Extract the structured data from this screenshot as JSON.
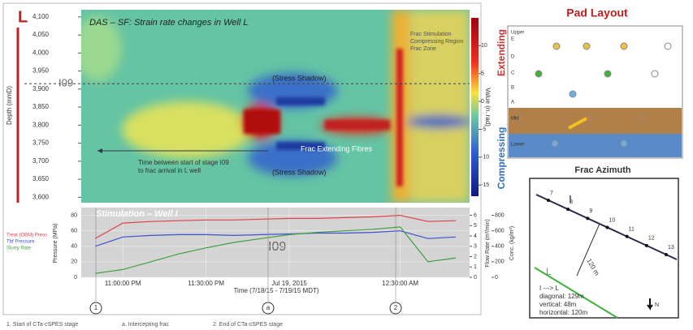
{
  "heatmap": {
    "title": "DAS – SF: Strain rate changes in Well L",
    "well": "L",
    "y_label": "Depth (mmD)",
    "ylim": [
      3585,
      4120
    ],
    "yticks": [
      {
        "value": 3600,
        "label": "3,600"
      },
      {
        "value": 3650,
        "label": "3,650"
      },
      {
        "value": 3700,
        "label": "3,700"
      },
      {
        "value": 3750,
        "label": "3,750"
      },
      {
        "value": 3800,
        "label": "3,800"
      },
      {
        "value": 3850,
        "label": "3,850"
      },
      {
        "value": 3900,
        "label": "3,900"
      },
      {
        "value": 3950,
        "label": "3,950"
      },
      {
        "value": 4000,
        "label": "4,000"
      },
      {
        "value": 4050,
        "label": "4,050"
      },
      {
        "value": 4100,
        "label": "4,100"
      }
    ],
    "stage": "I09",
    "stage_depth": 3915,
    "colorbar_label": "Value (n. rad)",
    "clim": [
      -17,
      15
    ],
    "cticks": [
      10,
      5,
      0,
      -5,
      -10,
      -15
    ],
    "extending": "Extending",
    "compressing": "Compressing",
    "annotations": [
      "(Stress Shadow)",
      "(Stress Shadow)",
      "Frac Extending Fibres",
      "Time between start of stage I09 to frac arrival in L well",
      "Frac Stimulation Compressing Region Frac Zone"
    ]
  },
  "chart_data": {
    "type": "line",
    "title": "Stimulation – Well I",
    "stage": "I09",
    "x_label": "Time (7/18/15 - 7/19/15 MDT)",
    "categories": [
      null,
      "11:00:00 PM",
      null,
      null,
      "11:30:00 PM",
      null,
      null,
      "Jul 19, 2015",
      null,
      null,
      null,
      "12:30:00 AM",
      null,
      null
    ],
    "y_label": "Pressure (MPa)",
    "ylim": [
      0,
      90
    ],
    "yticks": [
      0,
      20,
      40,
      60,
      80
    ],
    "y2_label": "Flow Rate (m³/min)",
    "y2lim": [
      0,
      6.75
    ],
    "y2ticks": [
      0,
      1,
      2,
      3,
      4,
      5,
      6
    ],
    "y3_label": "Conc. (kg/m³)",
    "y3lim": [
      0,
      900
    ],
    "y3ticks": [
      0,
      200,
      400,
      600,
      800
    ],
    "series": [
      {
        "name": "Treat (OBM) Press",
        "color": "#e04050",
        "values": [
          50,
          70,
          72,
          73,
          74,
          74,
          75,
          76,
          76,
          77,
          78,
          80,
          72,
          73
        ]
      },
      {
        "name": "Tbf Pressure",
        "color": "#4050d0",
        "values": [
          40,
          52,
          54,
          55,
          55,
          54,
          55,
          56,
          57,
          57,
          58,
          60,
          50,
          52
        ]
      },
      {
        "name": "Slurry Rate",
        "color": "#40a040",
        "values": [
          5,
          10,
          20,
          30,
          38,
          45,
          50,
          55,
          58,
          60,
          62,
          65,
          20,
          25
        ]
      }
    ],
    "markers": [
      "1",
      "a",
      "2"
    ],
    "footnotes": [
      "1. Start of CTa-cSPES stage",
      "a. Intercepting frac",
      "2. End of CTa-cSPES stage"
    ]
  },
  "pad": {
    "title": "Pad Layout",
    "rows": [
      "Upper",
      "E",
      "D",
      "C",
      "B",
      "A",
      "Mid",
      "Lower"
    ]
  },
  "azimuth": {
    "title": "Frac Azimuth",
    "stations": [
      "7",
      "8",
      "9",
      "10",
      "11",
      "12",
      "13"
    ],
    "well_i": "I",
    "well_l": "L",
    "distance": "120 m",
    "direction": "I ---> L",
    "diagonal": "diagonal: 129m",
    "vertical": "vertical: 48m",
    "horizontal": "horizontal: 120m",
    "north": "N"
  }
}
